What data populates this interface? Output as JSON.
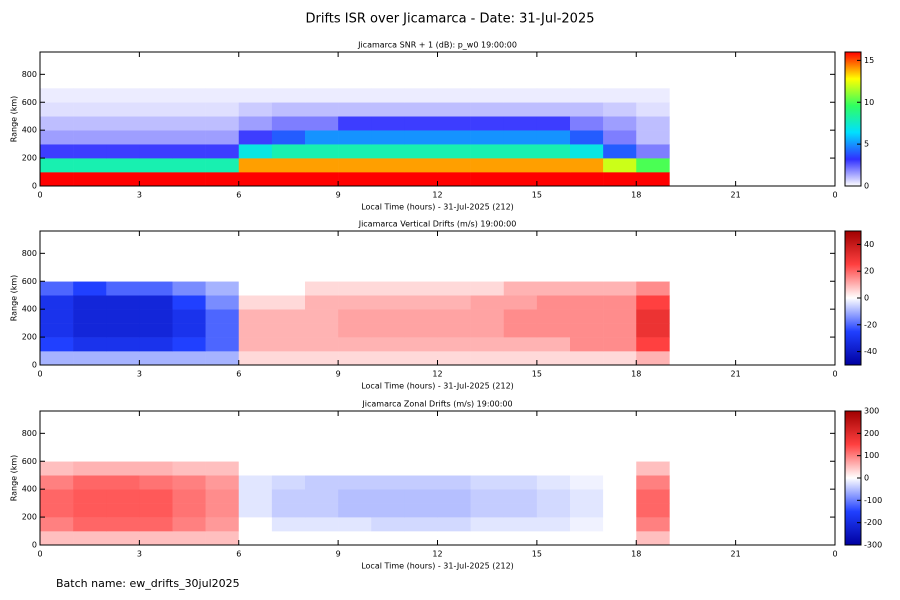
{
  "title": "Drifts ISR over Jicamarca - Date: 31-Jul-2025",
  "footer": "Batch name: ew_drifts_30jul2025",
  "chart_data": [
    {
      "type": "heatmap",
      "title": "Jicamarca SNR + 1 (dB): p_w0 19:00:00",
      "x_label": "Local Time (hours) - 31-Jul-2025 (212)",
      "y_label": "Range (km)",
      "xlim": [
        0,
        24
      ],
      "xticks": [
        0,
        3,
        6,
        9,
        12,
        15,
        18,
        21,
        {
          "value": 24,
          "label": "0"
        }
      ],
      "ylim": [
        0,
        960
      ],
      "yticks": [
        0,
        200,
        400,
        600,
        800
      ],
      "zlim": [
        0,
        16
      ],
      "zticks": [
        0,
        5,
        10,
        15
      ],
      "colormap": [
        "#ffffff",
        "#3030ff",
        "#00e0ff",
        "#30ff60",
        "#ffff00",
        "#ff0000"
      ],
      "x_bins": [
        0,
        1,
        2,
        3,
        4,
        5,
        6,
        7,
        8,
        9,
        10,
        11,
        12,
        13,
        14,
        15,
        16,
        17,
        18,
        19
      ],
      "y_bins": [
        0,
        100,
        200,
        300,
        400,
        500,
        600,
        700
      ],
      "z": [
        [
          16,
          16,
          16,
          16,
          16,
          16,
          16,
          16,
          16,
          16,
          16,
          16,
          16,
          16,
          16,
          16,
          16,
          16,
          16
        ],
        [
          8,
          8,
          8,
          8,
          8,
          8,
          14,
          14,
          14,
          14,
          14,
          14,
          14,
          14,
          14,
          14,
          14,
          12,
          10
        ],
        [
          3,
          3,
          3,
          3,
          3,
          3,
          7,
          8,
          8,
          8,
          8,
          8,
          8,
          8,
          8,
          8,
          7,
          4,
          2
        ],
        [
          1.5,
          1.5,
          1.5,
          1.5,
          1.5,
          1.5,
          3,
          4,
          5,
          5,
          5,
          5,
          5,
          5,
          5,
          5,
          4,
          2,
          1
        ],
        [
          1,
          1,
          1,
          1,
          1,
          1,
          1.5,
          2,
          2,
          3,
          3,
          3,
          3,
          3,
          3,
          3,
          2,
          1.5,
          1
        ],
        [
          0.5,
          0.5,
          0.5,
          0.5,
          0.5,
          0.5,
          0.8,
          1,
          1,
          1,
          1,
          1,
          1,
          1,
          1,
          1,
          1,
          0.8,
          0.5
        ],
        [
          0.3,
          0.3,
          0.3,
          0.3,
          0.3,
          0.3,
          0.3,
          0.3,
          0.3,
          0.3,
          0.3,
          0.3,
          0.3,
          0.3,
          0.3,
          0.3,
          0.3,
          0.3,
          0.3
        ]
      ]
    },
    {
      "type": "heatmap",
      "title": "Jicamarca Vertical Drifts (m/s) 19:00:00",
      "x_label": "Local Time (hours) - 31-Jul-2025 (212)",
      "y_label": "Range (km)",
      "xlim": [
        0,
        24
      ],
      "xticks": [
        0,
        3,
        6,
        9,
        12,
        15,
        18,
        21,
        {
          "value": 24,
          "label": "0"
        }
      ],
      "ylim": [
        0,
        960
      ],
      "yticks": [
        0,
        200,
        400,
        600,
        800
      ],
      "zlim": [
        -50,
        50
      ],
      "zticks": [
        -40,
        -20,
        0,
        20,
        40
      ],
      "colormap": [
        "#0000a0",
        "#2040ff",
        "#ffffff",
        "#ff4040",
        "#a00000"
      ],
      "x_bins": [
        0,
        1,
        2,
        3,
        4,
        5,
        6,
        7,
        8,
        9,
        10,
        11,
        12,
        13,
        14,
        15,
        16,
        17,
        18,
        19
      ],
      "y_bins": [
        0,
        100,
        200,
        300,
        400,
        500,
        600,
        700
      ],
      "z": [
        [
          -10,
          -10,
          -10,
          -10,
          -10,
          -10,
          5,
          5,
          5,
          5,
          5,
          5,
          5,
          5,
          5,
          5,
          5,
          5,
          10
        ],
        [
          -25,
          -30,
          -30,
          -30,
          -25,
          -20,
          10,
          10,
          10,
          10,
          10,
          10,
          10,
          10,
          10,
          10,
          15,
          15,
          25
        ],
        [
          -30,
          -35,
          -35,
          -35,
          -30,
          -20,
          10,
          10,
          10,
          12,
          12,
          12,
          12,
          12,
          15,
          15,
          15,
          15,
          30
        ],
        [
          -30,
          -35,
          -35,
          -35,
          -30,
          -20,
          10,
          10,
          10,
          12,
          12,
          12,
          12,
          12,
          15,
          15,
          15,
          15,
          30
        ],
        [
          -30,
          -35,
          -35,
          -35,
          -25,
          -15,
          5,
          5,
          10,
          10,
          10,
          10,
          10,
          12,
          12,
          15,
          15,
          15,
          25
        ],
        [
          -20,
          -25,
          -20,
          -20,
          -15,
          -10,
          0,
          0,
          5,
          5,
          5,
          5,
          5,
          5,
          10,
          10,
          10,
          10,
          15
        ],
        [
          0,
          0,
          0,
          0,
          0,
          0,
          0,
          0,
          0,
          0,
          0,
          0,
          0,
          0,
          0,
          0,
          0,
          0,
          0
        ]
      ]
    },
    {
      "type": "heatmap",
      "title": "Jicamarca Zonal Drifts (m/s) 19:00:00",
      "x_label": "Local Time (hours) - 31-Jul-2025 (212)",
      "y_label": "Range (km)",
      "xlim": [
        0,
        24
      ],
      "xticks": [
        0,
        3,
        6,
        9,
        12,
        15,
        18,
        21,
        {
          "value": 24,
          "label": "0"
        }
      ],
      "ylim": [
        0,
        960
      ],
      "yticks": [
        0,
        200,
        400,
        600,
        800
      ],
      "zlim": [
        -300,
        300
      ],
      "zticks": [
        -300,
        -200,
        -100,
        0,
        100,
        200,
        300
      ],
      "colormap": [
        "#0000a0",
        "#2040ff",
        "#ffffff",
        "#ff4040",
        "#a00000"
      ],
      "x_bins": [
        0,
        1,
        2,
        3,
        4,
        5,
        6,
        7,
        8,
        9,
        10,
        11,
        12,
        13,
        14,
        15,
        16,
        17,
        18,
        19
      ],
      "y_bins": [
        0,
        100,
        200,
        300,
        400,
        500,
        600,
        700
      ],
      "z": [
        [
          50,
          50,
          50,
          50,
          50,
          50,
          0,
          0,
          0,
          0,
          0,
          0,
          0,
          0,
          0,
          0,
          0,
          0,
          50
        ],
        [
          100,
          120,
          120,
          120,
          100,
          80,
          0,
          -20,
          -20,
          -20,
          -30,
          -30,
          -30,
          -20,
          -20,
          -20,
          -10,
          0,
          100
        ],
        [
          120,
          130,
          130,
          130,
          110,
          90,
          -20,
          -40,
          -40,
          -50,
          -50,
          -50,
          -50,
          -40,
          -40,
          -30,
          -20,
          0,
          120
        ],
        [
          120,
          130,
          130,
          130,
          110,
          90,
          -20,
          -40,
          -40,
          -50,
          -50,
          -50,
          -50,
          -40,
          -40,
          -30,
          -20,
          0,
          120
        ],
        [
          100,
          120,
          120,
          110,
          100,
          80,
          -20,
          -30,
          -40,
          -40,
          -40,
          -40,
          -40,
          -30,
          -30,
          -20,
          -10,
          0,
          100
        ],
        [
          50,
          60,
          60,
          60,
          50,
          50,
          0,
          0,
          0,
          0,
          0,
          0,
          0,
          0,
          0,
          0,
          0,
          0,
          50
        ],
        [
          0,
          0,
          0,
          0,
          0,
          0,
          0,
          0,
          0,
          0,
          0,
          0,
          0,
          0,
          0,
          0,
          0,
          0,
          0
        ]
      ]
    }
  ]
}
